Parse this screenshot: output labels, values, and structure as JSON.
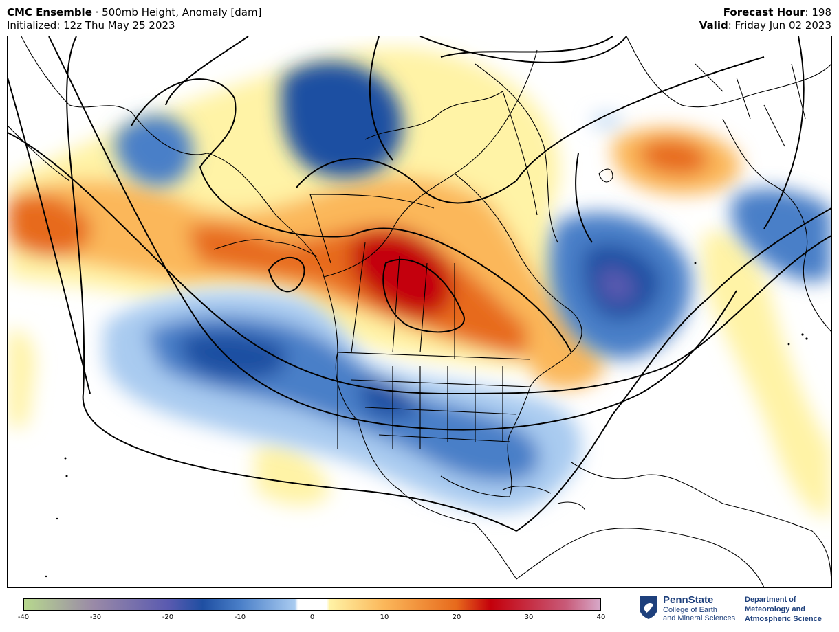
{
  "header": {
    "model_name": "CMC Ensemble",
    "field": " · 500mb Height, Anomaly [dam]",
    "initialized": "Initialized: 12z Thu May 25 2023",
    "forecast_hour_label": "Forecast Hour",
    "forecast_hour_value": ": 198",
    "valid_label": "Valid",
    "valid_value": ": Friday Jun 02 2023"
  },
  "colorbar": {
    "min": -40,
    "max": 40,
    "tick_labels": [
      "-40",
      "-30",
      "-20",
      "-10",
      "0",
      "10",
      "20",
      "30",
      "40"
    ],
    "colors": {
      "neg40": "#b7d88e",
      "neg30": "#9a8aa7",
      "neg20": "#5a5ab0",
      "neg15": "#1f4fa2",
      "neg10": "#4a7fc8",
      "neg3": "#a9cbf0",
      "zero": "#ffffff",
      "pos3": "#fff3a6",
      "pos10": "#fbb75a",
      "pos20": "#e76a1c",
      "pos25": "#c4000b",
      "pos35": "#c85a78",
      "pos40": "#d7a9c9"
    }
  },
  "logo": {
    "name": "PennState",
    "line1": "College of Earth",
    "line2": "and Mineral Sciences",
    "dept1": "Department of",
    "dept2": "Meteorology and",
    "dept3": "Atmospheric Science"
  }
}
